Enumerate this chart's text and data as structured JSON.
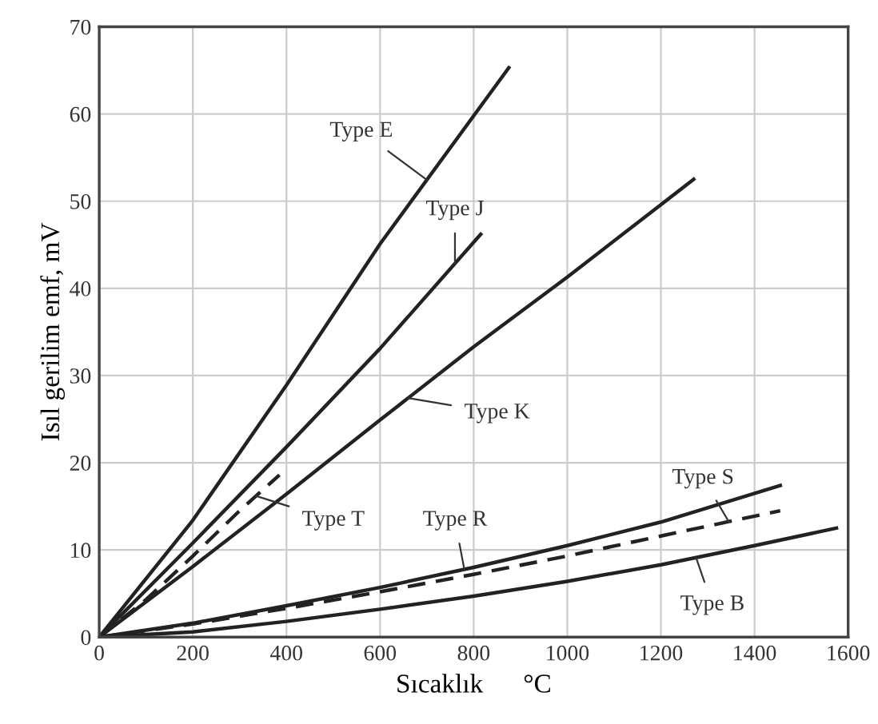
{
  "chart_data": {
    "type": "line",
    "xlabel": "Sıcaklık      °C",
    "ylabel": "Isıl gerilim emf, mV",
    "xlim": [
      0,
      1600
    ],
    "ylim": [
      0,
      70
    ],
    "xticks": [
      0,
      200,
      400,
      600,
      800,
      1000,
      1200,
      1400,
      1600
    ],
    "yticks": [
      0,
      10,
      20,
      30,
      40,
      50,
      60,
      70
    ],
    "grid": true,
    "legend": false,
    "marker": "none",
    "series": [
      {
        "name": "Type E",
        "color": "#222222",
        "line_style": "solid",
        "x": [
          0,
          200,
          400,
          600,
          875
        ],
        "values": [
          0,
          13.4,
          28.9,
          45.1,
          65.3
        ]
      },
      {
        "name": "Type J",
        "color": "#222222",
        "line_style": "solid",
        "x": [
          0,
          200,
          400,
          600,
          815
        ],
        "values": [
          0,
          10.8,
          21.8,
          33.1,
          46.2
        ]
      },
      {
        "name": "Type K",
        "color": "#222222",
        "line_style": "solid",
        "x": [
          0,
          200,
          400,
          600,
          800,
          1000,
          1270
        ],
        "values": [
          0,
          8.1,
          16.4,
          24.9,
          33.3,
          41.3,
          52.5
        ]
      },
      {
        "name": "Type T",
        "color": "#222222",
        "line_style": "dashed",
        "x": [
          0,
          100,
          200,
          300,
          385
        ],
        "values": [
          0,
          4.3,
          9.3,
          14.5,
          18.6
        ]
      },
      {
        "name": "Type R",
        "color": "#222222",
        "line_style": "solid",
        "x": [
          0,
          200,
          400,
          600,
          800,
          1000,
          1200,
          1455
        ],
        "values": [
          0,
          1.6,
          3.6,
          5.7,
          8.0,
          10.5,
          13.2,
          17.4
        ]
      },
      {
        "name": "Type S",
        "color": "#222222",
        "line_style": "dashed",
        "x": [
          0,
          200,
          400,
          600,
          800,
          1000,
          1200,
          1455
        ],
        "values": [
          0,
          1.5,
          3.3,
          5.2,
          7.2,
          9.3,
          11.6,
          14.5
        ]
      },
      {
        "name": "Type B",
        "color": "#222222",
        "line_style": "solid",
        "x": [
          0,
          200,
          400,
          600,
          800,
          1000,
          1200,
          1400,
          1575
        ],
        "values": [
          0,
          0.6,
          1.8,
          3.2,
          4.7,
          6.4,
          8.3,
          10.5,
          12.5
        ]
      }
    ]
  }
}
